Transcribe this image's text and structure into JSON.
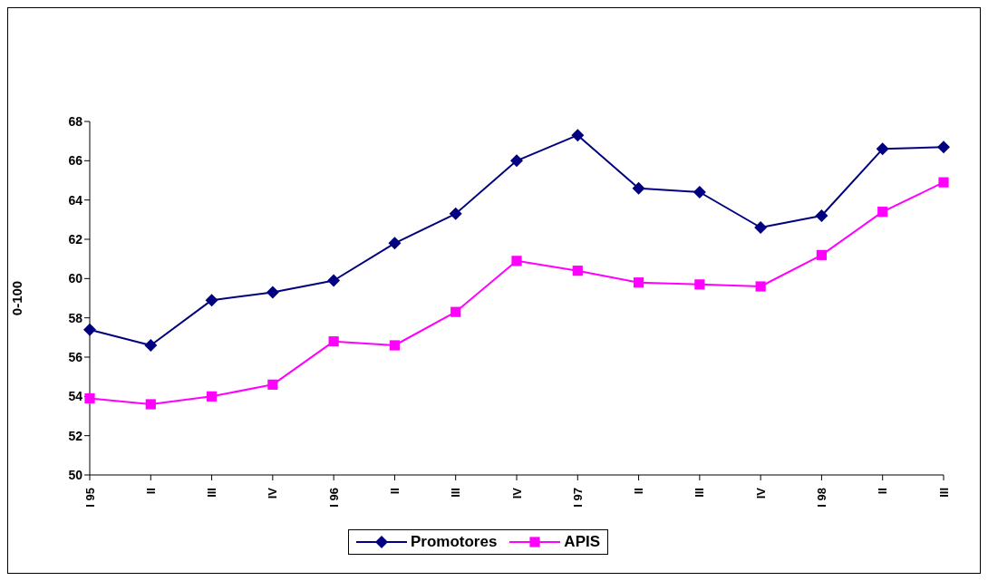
{
  "chart_data": {
    "type": "line",
    "ylabel": "0-100",
    "categories": [
      "I 95",
      "II",
      "III",
      "IV",
      "I 96",
      "II",
      "III",
      "IV",
      "I 97",
      "II",
      "III",
      "IV",
      "I 98",
      "II",
      "III"
    ],
    "series": [
      {
        "name": "Promotores",
        "color": "#000080",
        "marker": "diamond",
        "values": [
          57.4,
          56.6,
          58.9,
          59.3,
          59.9,
          61.8,
          63.3,
          66.0,
          67.3,
          64.6,
          64.4,
          62.6,
          63.2,
          66.6,
          66.7
        ]
      },
      {
        "name": "APIS",
        "color": "#ff00ff",
        "marker": "square",
        "values": [
          53.9,
          53.6,
          54.0,
          54.6,
          56.8,
          56.6,
          58.3,
          60.9,
          60.4,
          59.8,
          59.7,
          59.6,
          61.2,
          63.4,
          64.9
        ]
      }
    ],
    "ylim": [
      50,
      68
    ],
    "yticks": [
      50,
      52,
      54,
      56,
      58,
      60,
      62,
      64,
      66,
      68
    ],
    "grid": false,
    "legend": "bottom"
  }
}
